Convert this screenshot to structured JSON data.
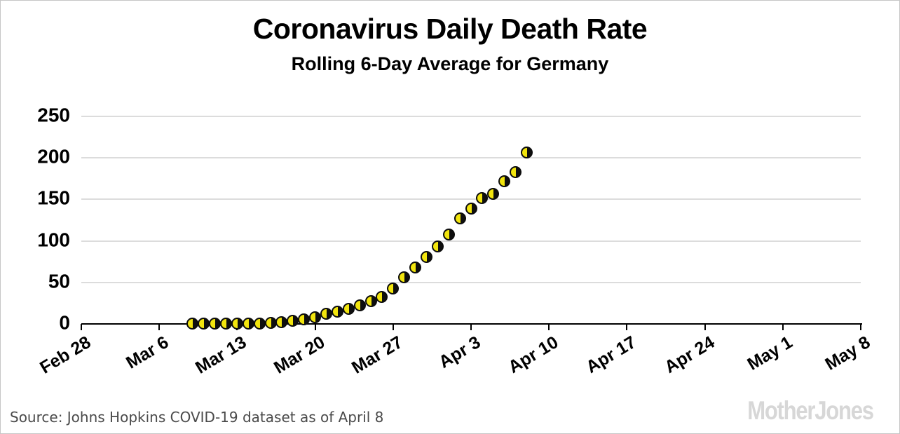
{
  "header": {
    "title": "Coronavirus Daily Death Rate",
    "subtitle": "Rolling 6-Day Average for Germany"
  },
  "footer": {
    "source": "Source: Johns Hopkins COVID-19 dataset as of April 8",
    "logo": "MotherJones"
  },
  "chart_data": {
    "type": "scatter",
    "title": "Coronavirus Daily Death Rate",
    "subtitle": "Rolling 6-Day Average for Germany",
    "x": [
      "Mar 9",
      "Mar 10",
      "Mar 11",
      "Mar 12",
      "Mar 13",
      "Mar 14",
      "Mar 15",
      "Mar 16",
      "Mar 17",
      "Mar 18",
      "Mar 19",
      "Mar 20",
      "Mar 21",
      "Mar 22",
      "Mar 23",
      "Mar 24",
      "Mar 25",
      "Mar 26",
      "Mar 27",
      "Mar 28",
      "Mar 29",
      "Mar 30",
      "Mar 31",
      "Apr 1",
      "Apr 2",
      "Apr 3",
      "Apr 4",
      "Apr 5",
      "Apr 6",
      "Apr 7",
      "Apr 8"
    ],
    "values": [
      0.2,
      0.2,
      0.3,
      0.3,
      0.3,
      0.6,
      0.8,
      1.4,
      2.3,
      3.4,
      5.1,
      8.3,
      12.4,
      15.2,
      18.3,
      22.5,
      27.3,
      32.4,
      43,
      56.5,
      68,
      81,
      93,
      108,
      127.5,
      139,
      152,
      157,
      171.5,
      182.5,
      206.5
    ],
    "x_axis_start": "Feb 28",
    "x_axis_end": "May 8",
    "x_tick_labels": [
      "Feb 28",
      "Mar 6",
      "Mar 13",
      "Mar 20",
      "Mar 27",
      "Apr 3",
      "Apr 10",
      "Apr 17",
      "Apr 24",
      "May 1",
      "May 8"
    ],
    "x_tick_interval_days": 7,
    "x_range_days": 70,
    "first_point_day_offset": 10,
    "y_ticks": [
      0,
      50,
      100,
      150,
      200,
      250
    ],
    "ylim": [
      0,
      250
    ],
    "grid": "horizontal",
    "legend": "none",
    "marker_style": {
      "shape": "half-filled-circle",
      "left_fill": "#f2e50e",
      "right_fill": "#0f0f0f",
      "outline": "#0c0c0c"
    },
    "colors": {
      "gridline": "#dcdcdc",
      "axis": "#000000",
      "text": "#000000",
      "source_text": "#4a4a4a",
      "logo_text": "#d7d7d7"
    }
  }
}
